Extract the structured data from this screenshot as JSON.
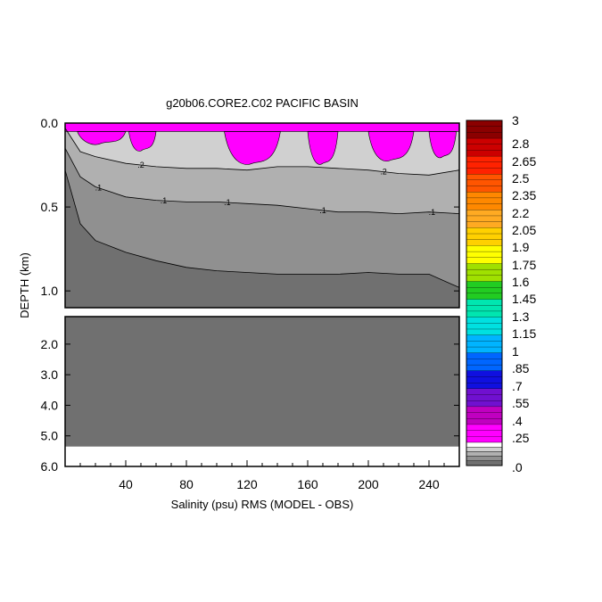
{
  "chart_data": {
    "type": "heatmap",
    "title": "g20b06.CORE2.C02 PACIFIC BASIN",
    "xlabel": "Salinity (psu) RMS (MODEL - OBS)",
    "ylabel": "DEPTH (km)",
    "x_range": [
      0,
      260
    ],
    "x_ticks": [
      "40",
      "80",
      "120",
      "160",
      "200",
      "240"
    ],
    "x_tick_values": [
      40,
      80,
      120,
      160,
      200,
      240
    ],
    "upper_panel": {
      "y_range_km": [
        0,
        1.1
      ],
      "y_ticks": [
        "0.0",
        "0.5",
        "1.0"
      ],
      "y_tick_values": [
        0,
        0.5,
        1.0
      ]
    },
    "lower_panel": {
      "y_range_km": [
        1.1,
        6.0
      ],
      "y_ticks": [
        "2.0",
        "3.0",
        "4.0",
        "5.0",
        "6.0"
      ],
      "y_tick_values": [
        2,
        3,
        4,
        5,
        6
      ],
      "sea_floor_km": 5.35
    },
    "contour_labels": [
      ".1",
      ".1",
      ".1",
      ".1",
      ".1",
      ".2",
      ".2"
    ],
    "contours_km": {
      "x": [
        0,
        10,
        20,
        40,
        60,
        80,
        100,
        120,
        140,
        160,
        180,
        200,
        220,
        240,
        260
      ],
      "rms_0_2": [
        0.03,
        0.17,
        0.2,
        0.24,
        0.26,
        0.27,
        0.27,
        0.28,
        0.26,
        0.26,
        0.27,
        0.28,
        0.3,
        0.31,
        0.28
      ],
      "rms_0_1": [
        0.15,
        0.32,
        0.38,
        0.44,
        0.46,
        0.47,
        0.47,
        0.48,
        0.49,
        0.51,
        0.53,
        0.53,
        0.54,
        0.53,
        0.54
      ],
      "rms_0_05": [
        0.28,
        0.6,
        0.7,
        0.77,
        0.82,
        0.86,
        0.88,
        0.89,
        0.9,
        0.9,
        0.9,
        0.89,
        0.9,
        0.9,
        0.98
      ]
    },
    "high_rms_patches_km": {
      "surface_band_depth": 0.05,
      "lobes": [
        [
          8,
          40,
          0.12
        ],
        [
          42,
          60,
          0.16
        ],
        [
          105,
          142,
          0.24
        ],
        [
          160,
          180,
          0.24
        ],
        [
          200,
          230,
          0.22
        ],
        [
          240,
          258,
          0.2
        ]
      ]
    },
    "colorbar": {
      "labels": [
        "3",
        "2.8",
        "2.65",
        "2.5",
        "2.35",
        "2.2",
        "2.05",
        "1.9",
        "1.75",
        "1.6",
        "1.45",
        "1.3",
        "1.15",
        "1",
        ".85",
        ".7",
        ".55",
        ".4",
        ".25",
        ".0"
      ],
      "top_band_colors": [
        "#8b0000",
        "#cc0000",
        "#ff2200",
        "#ff5500",
        "#ff8800",
        "#ffaa22",
        "#ffd000",
        "#ffff00",
        "#a0e000",
        "#22cc22",
        "#00e6b0",
        "#00e0e0",
        "#00b4ff",
        "#0066ff",
        "#1010e0",
        "#7010d0",
        "#c000c0",
        "#ff00ff"
      ],
      "bottom_band_colors": [
        "#ffffff",
        "#d0d0d0",
        "#b0b0b0",
        "#909090",
        "#707070"
      ]
    },
    "colors": {
      "high_rms": "#ff00ff",
      "rms_gt_0_2": "#d0d0d0",
      "rms_0_1_to_0_2": "#b0b0b0",
      "rms_0_05_to_0_1": "#909090",
      "rms_lt_0_05": "#707070",
      "no_data": "#ffffff"
    }
  }
}
